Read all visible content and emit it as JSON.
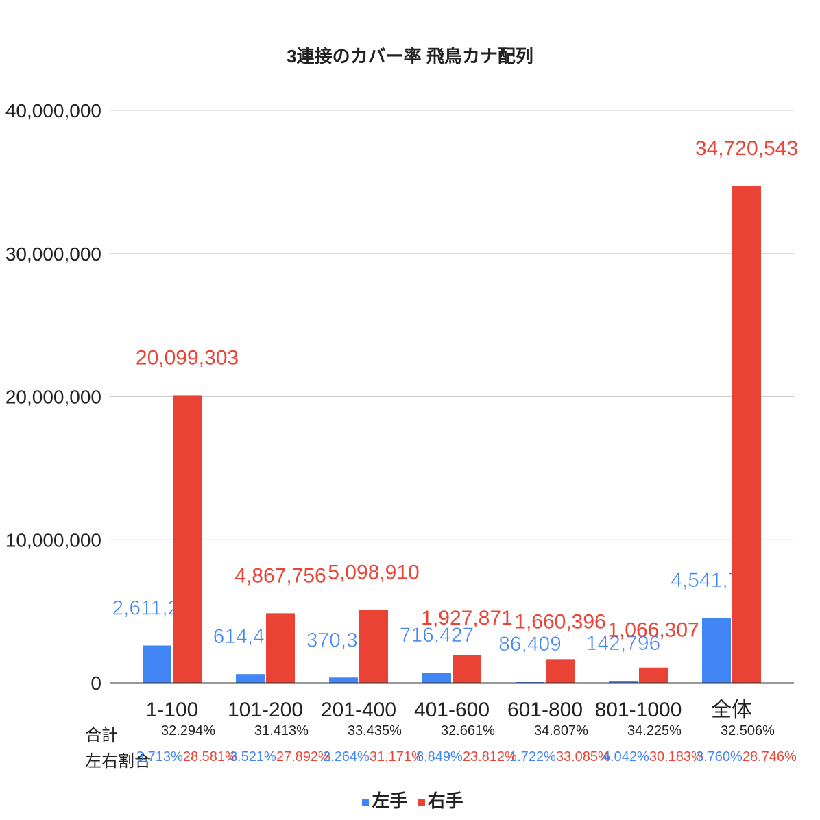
{
  "chart_data": {
    "type": "bar",
    "title": "3連接のカバー率 飛鳥カナ配列",
    "categories": [
      "1-100",
      "101-200",
      "201-400",
      "401-600",
      "601-800",
      "801-1000",
      "全体"
    ],
    "series": [
      {
        "name": "左手",
        "color": "#4285f4",
        "values": [
          2611279,
          614425,
          370392,
          716427,
          86409,
          142796,
          4541728
        ],
        "labels": [
          "2,611,279",
          "614,425",
          "370,392",
          "716,427",
          "86,409",
          "142,796",
          "4,541,728"
        ]
      },
      {
        "name": "右手",
        "color": "#ea4335",
        "values": [
          20099303,
          4867756,
          5098910,
          1927871,
          1660396,
          1066307,
          34720543
        ],
        "labels": [
          "20,099,303",
          "4,867,756",
          "5,098,910",
          "1,927,871",
          "1,660,396",
          "1,066,307",
          "34,720,543"
        ]
      }
    ],
    "ylim": [
      0,
      40000000
    ],
    "yticks": [
      0,
      10000000,
      20000000,
      30000000,
      40000000
    ],
    "ytick_labels": [
      "0",
      "10,000,000",
      "20,000,000",
      "30,000,000",
      "40,000,000"
    ],
    "grid": true,
    "legend_position": "bottom",
    "annotations": {
      "total_label": "合計",
      "ratio_label": "左右割合",
      "totals": [
        "32.294%",
        "31.413%",
        "33.435%",
        "32.661%",
        "34.807%",
        "34.225%",
        "32.506%"
      ],
      "left_ratios": [
        "3.713%",
        "3.521%",
        "2.264%",
        "8.849%",
        "1.722%",
        "4.042%",
        "3.760%"
      ],
      "right_ratios": [
        "28.581%",
        "27.892%",
        "31.171%",
        "23.812%",
        "33.085%",
        "30.183%",
        "28.746%"
      ]
    }
  }
}
